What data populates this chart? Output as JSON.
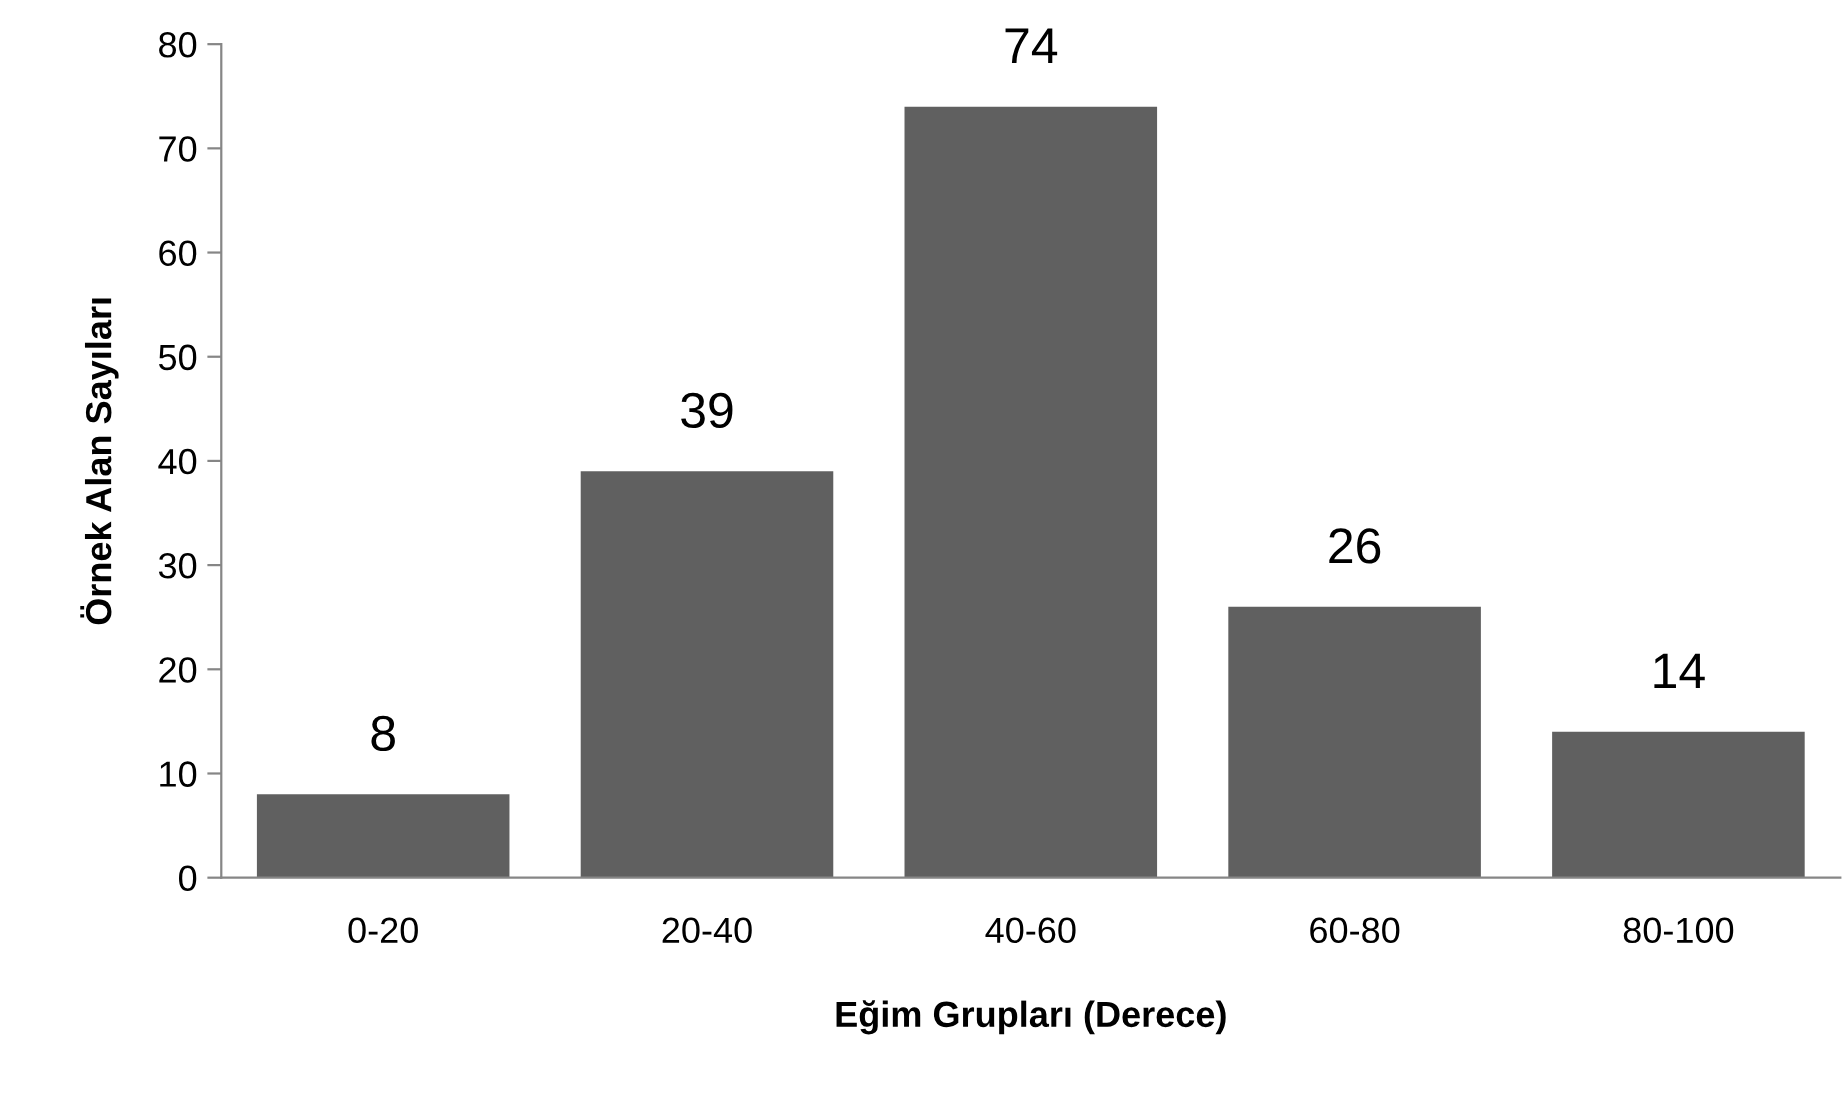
{
  "chart_data": {
    "type": "bar",
    "xlabel": "Eğim Grupları (Derece)",
    "ylabel": "Örnek Alan Sayıları",
    "categories": [
      "0-20",
      "20-40",
      "40-60",
      "60-80",
      "80-100"
    ],
    "values": [
      8,
      39,
      74,
      26,
      14
    ],
    "color": "#606060",
    "ylim": [
      0,
      80
    ],
    "yticks": [
      0,
      10,
      20,
      30,
      40,
      50,
      60,
      70,
      80
    ],
    "grid": false,
    "data_labels": true
  }
}
